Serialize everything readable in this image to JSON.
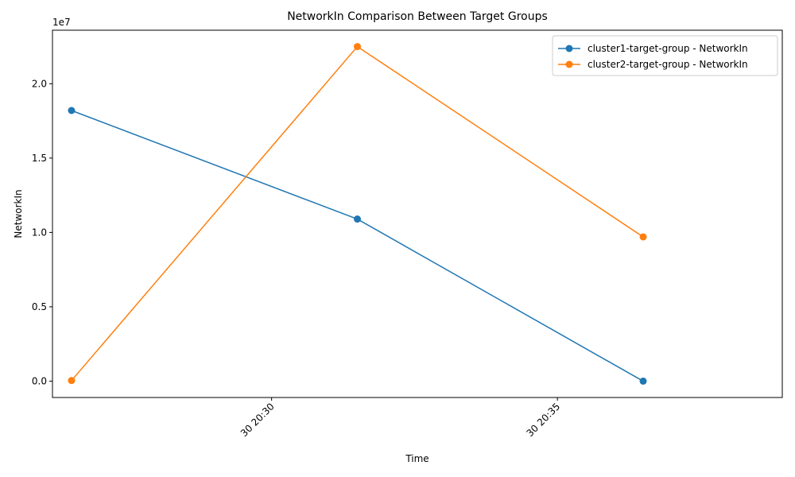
{
  "chart_data": {
    "type": "line",
    "title": "NetworkIn Comparison Between Target Groups",
    "xlabel": "Time",
    "ylabel": "NetworkIn",
    "y_offset_text": "1e7",
    "x_ticks": [
      "30 20:30",
      "30 20:35"
    ],
    "y_ticks": [
      "0.0",
      "0.5",
      "1.0",
      "1.5",
      "2.0"
    ],
    "y_tick_values": [
      0,
      5000000,
      10000000,
      15000000,
      20000000
    ],
    "ylim": [
      -1100000,
      23600000
    ],
    "xlim": [
      "20:26:10",
      "20:38:56"
    ],
    "x_tick_values": [
      "20:30:00",
      "20:35:00"
    ],
    "x": [
      "20:26:30",
      "20:31:30",
      "20:36:30"
    ],
    "series": [
      {
        "name": "cluster1-target-group - NetworkIn",
        "color": "#1f77b4",
        "values": [
          18200000,
          10900000,
          0
        ]
      },
      {
        "name": "cluster2-target-group - NetworkIn",
        "color": "#ff7f0e",
        "values": [
          40000,
          22500000,
          9700000
        ]
      }
    ],
    "grid": false,
    "legend_position": "top-right",
    "marker": "circle"
  }
}
